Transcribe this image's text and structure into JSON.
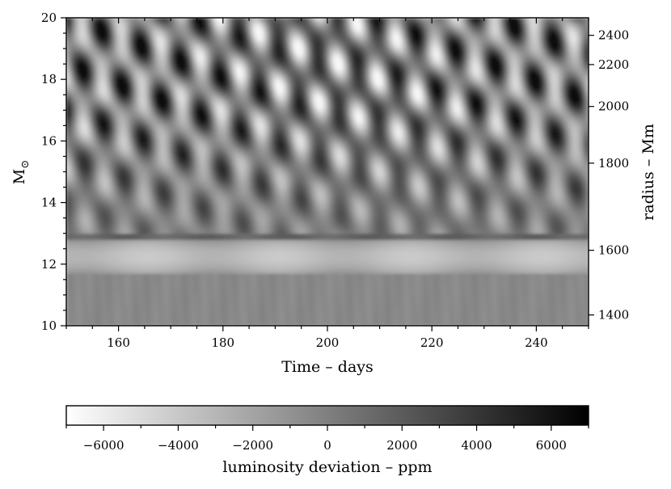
{
  "chart_data": {
    "type": "heatmap",
    "title": "",
    "xlabel": "Time – days",
    "ylabel": "M",
    "ylabel_subscript": "⊙",
    "y2label": "radius – Mm",
    "xlim": [
      150,
      250
    ],
    "ylim": [
      10,
      20
    ],
    "x_ticks": [
      160,
      180,
      200,
      220,
      240
    ],
    "x_minor_step": 5,
    "y_ticks": [
      10,
      12,
      14,
      16,
      18,
      20
    ],
    "y_minor_step": 0.5,
    "y2_ticks": [
      {
        "label": "2400",
        "mass": 19.43
      },
      {
        "label": "2200",
        "mass": 18.48
      },
      {
        "label": "2000",
        "mass": 17.12
      },
      {
        "label": "1800",
        "mass": 15.28
      },
      {
        "label": "1600",
        "mass": 12.45
      },
      {
        "label": "1400",
        "mass": 10.35
      }
    ],
    "colormap": "gray_r",
    "colorbar": {
      "label": "luminosity deviation – ppm",
      "range": [
        -7000,
        7000
      ],
      "ticks": [
        -6000,
        -4000,
        -2000,
        0,
        2000,
        4000,
        6000
      ],
      "tick_labels": [
        "−6000",
        "−4000",
        "−2000",
        "0",
        "2000",
        "4000",
        "6000"
      ],
      "minor_step": 1000
    },
    "regions": [
      {
        "name": "convective-envelope",
        "mass_range": [
          13.0,
          20.0
        ],
        "pattern": "diagonal oscillating wave fronts",
        "amplitude_ppm": 6500
      },
      {
        "name": "boundary-layer",
        "mass_range": [
          12.8,
          13.0
        ],
        "mean_ppm": 1500
      },
      {
        "name": "bright-band",
        "mass_range": [
          11.7,
          12.8
        ],
        "mean_ppm": -3500
      },
      {
        "name": "radiative-interior",
        "mass_range": [
          10.0,
          11.7
        ],
        "mean_ppm": -500
      }
    ]
  }
}
